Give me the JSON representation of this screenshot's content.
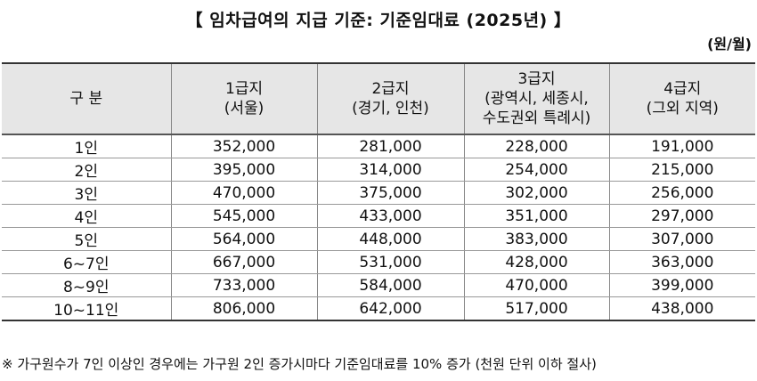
{
  "title": "【 임차급여의 지급 기준: 기준임대료 (2025년) 】",
  "unit": "(원/월)",
  "table": {
    "headers": [
      {
        "lines": [
          "구  분"
        ]
      },
      {
        "lines": [
          "1급지",
          "(서울)"
        ]
      },
      {
        "lines": [
          "2급지",
          "(경기, 인천)"
        ]
      },
      {
        "lines": [
          "3급지",
          "(광역시, 세종시,",
          "수도권외 특례시)"
        ]
      },
      {
        "lines": [
          "4급지",
          "(그외 지역)"
        ]
      }
    ],
    "rows": [
      [
        "1인",
        "352,000",
        "281,000",
        "228,000",
        "191,000"
      ],
      [
        "2인",
        "395,000",
        "314,000",
        "254,000",
        "215,000"
      ],
      [
        "3인",
        "470,000",
        "375,000",
        "302,000",
        "256,000"
      ],
      [
        "4인",
        "545,000",
        "433,000",
        "351,000",
        "297,000"
      ],
      [
        "5인",
        "564,000",
        "448,000",
        "383,000",
        "307,000"
      ],
      [
        "6~7인",
        "667,000",
        "531,000",
        "428,000",
        "363,000"
      ],
      [
        "8~9인",
        "733,000",
        "584,000",
        "470,000",
        "399,000"
      ],
      [
        "10~11인",
        "806,000",
        "642,000",
        "517,000",
        "438,000"
      ]
    ]
  },
  "note": "※ 가구원수가 7인 이상인 경우에는 가구원 2인 증가시마다 기준임대료를 10% 증가 (천원 단위 이하 절사)"
}
